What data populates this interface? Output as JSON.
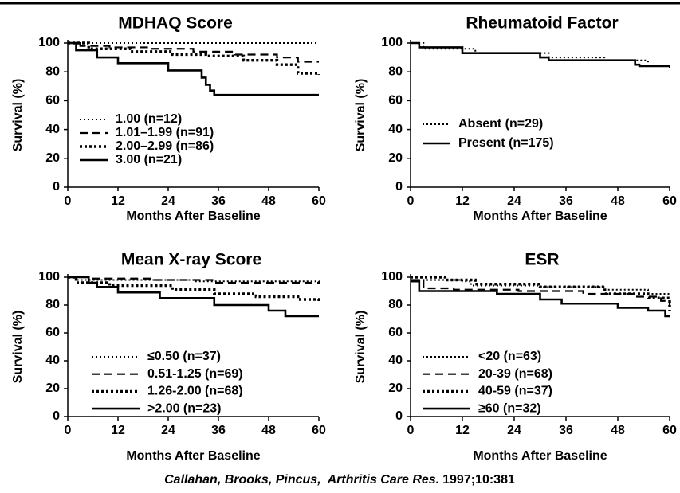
{
  "chart_data": [
    {
      "type": "line",
      "title": "MDHAQ Score",
      "x_label": "Months After Baseline",
      "y_label": "Survival (%)",
      "xlim": [
        0,
        60
      ],
      "ylim": [
        0,
        100
      ],
      "xticks": [
        0,
        12,
        24,
        36,
        48,
        60
      ],
      "yticks": [
        0,
        20,
        40,
        60,
        80,
        100
      ],
      "step": true,
      "legend": "lower left",
      "series": [
        {
          "name": "1.00 (n=12)",
          "color": "#000000",
          "dash": "dotted",
          "x": [
            0,
            60
          ],
          "values": [
            100,
            100
          ]
        },
        {
          "name": "1.01–1.99 (n=91)",
          "color": "#000000",
          "dash": "dashed",
          "x": [
            0,
            3,
            10,
            20,
            30,
            40,
            50,
            55,
            60
          ],
          "values": [
            100,
            98,
            97,
            96,
            94,
            92,
            90,
            87,
            87
          ]
        },
        {
          "name": "2.00–2.99 (n=86)",
          "color": "#000000",
          "dash": "heavy-dotted",
          "x": [
            0,
            5,
            15,
            25,
            33,
            42,
            50,
            55,
            60
          ],
          "values": [
            100,
            96,
            94,
            92,
            91,
            88,
            85,
            79,
            78
          ]
        },
        {
          "name": "3.00 (n=21)",
          "color": "#000000",
          "dash": "solid",
          "x": [
            0,
            2,
            7,
            12,
            24,
            32,
            33,
            34,
            35,
            60
          ],
          "values": [
            100,
            95,
            90,
            86,
            81,
            76,
            71,
            67,
            64,
            64
          ]
        }
      ]
    },
    {
      "type": "line",
      "title": "Rheumatoid Factor",
      "x_label": "Months After Baseline",
      "y_label": "Survival (%)",
      "xlim": [
        0,
        60
      ],
      "ylim": [
        0,
        100
      ],
      "xticks": [
        0,
        12,
        24,
        36,
        48,
        60
      ],
      "yticks": [
        0,
        20,
        40,
        60,
        80,
        100
      ],
      "step": true,
      "legend": "center left",
      "series": [
        {
          "name": "Absent (n=29)",
          "color": "#000000",
          "dash": "dotted",
          "x": [
            0,
            3,
            15,
            32,
            45,
            55,
            60
          ],
          "values": [
            100,
            96,
            93,
            90,
            88,
            84,
            82
          ]
        },
        {
          "name": "Present (n=175)",
          "color": "#000000",
          "dash": "solid",
          "x": [
            0,
            2,
            12,
            30,
            32,
            52,
            53,
            60
          ],
          "values": [
            100,
            97,
            93,
            90,
            88,
            85,
            84,
            84
          ]
        }
      ]
    },
    {
      "type": "line",
      "title": "Mean X-ray Score",
      "x_label": "Months After Baseline",
      "y_label": "Survival (%)",
      "xlim": [
        0,
        60
      ],
      "ylim": [
        0,
        100
      ],
      "xticks": [
        0,
        12,
        24,
        36,
        48,
        60
      ],
      "yticks": [
        0,
        20,
        40,
        60,
        80,
        100
      ],
      "step": true,
      "legend": "lower left",
      "series": [
        {
          "name": "≤0.50 (n=37)",
          "color": "#000000",
          "dash": "dotted",
          "x": [
            0,
            2,
            30,
            60
          ],
          "values": [
            100,
            98,
            97,
            96
          ]
        },
        {
          "name": "0.51-1.25 (n=69)",
          "color": "#000000",
          "dash": "dashed",
          "x": [
            0,
            5,
            20,
            35,
            60
          ],
          "values": [
            100,
            99,
            98,
            96,
            95
          ]
        },
        {
          "name": "1.26-2.00 (n=68)",
          "color": "#000000",
          "dash": "heavy-dotted",
          "x": [
            0,
            2,
            10,
            25,
            35,
            45,
            55,
            60
          ],
          "values": [
            100,
            96,
            94,
            91,
            88,
            86,
            84,
            82
          ]
        },
        {
          "name": ">2.00 (n=23)",
          "color": "#000000",
          "dash": "solid",
          "x": [
            0,
            5,
            7,
            12,
            22,
            35,
            48,
            52,
            60
          ],
          "values": [
            100,
            96,
            93,
            89,
            85,
            80,
            76,
            72,
            72
          ]
        }
      ]
    },
    {
      "type": "line",
      "title": "ESR",
      "x_label": "Months After Baseline",
      "y_label": "Survival (%)",
      "xlim": [
        0,
        60
      ],
      "ylim": [
        0,
        100
      ],
      "xticks": [
        0,
        12,
        24,
        36,
        48,
        60
      ],
      "yticks": [
        0,
        20,
        40,
        60,
        80,
        100
      ],
      "step": true,
      "legend": "lower left",
      "series": [
        {
          "name": "<20 (n=63)",
          "color": "#000000",
          "dash": "dotted",
          "x": [
            0,
            12,
            14,
            30,
            45,
            55,
            60
          ],
          "values": [
            98,
            97,
            94,
            93,
            91,
            88,
            88
          ]
        },
        {
          "name": "20-39 (n=68)",
          "color": "#000000",
          "dash": "dashed",
          "x": [
            0,
            3,
            10,
            25,
            40,
            52,
            58,
            60
          ],
          "values": [
            98,
            92,
            91,
            90,
            88,
            86,
            83,
            80
          ]
        },
        {
          "name": "40-59 (n=37)",
          "color": "#000000",
          "dash": "heavy-dotted",
          "x": [
            0,
            8,
            15,
            30,
            45,
            55,
            60
          ],
          "values": [
            100,
            98,
            95,
            93,
            88,
            85,
            76
          ]
        },
        {
          "name": "≥60 (n=32)",
          "color": "#000000",
          "dash": "solid",
          "x": [
            0,
            2,
            20,
            30,
            35,
            48,
            55,
            59,
            60
          ],
          "values": [
            97,
            90,
            88,
            84,
            81,
            78,
            76,
            72,
            72
          ]
        }
      ]
    }
  ],
  "caption": {
    "authors": "Callahan, Brooks, Pincus,",
    "journal": "Arthritis Care Res.",
    "citation": "1997;10:381"
  }
}
